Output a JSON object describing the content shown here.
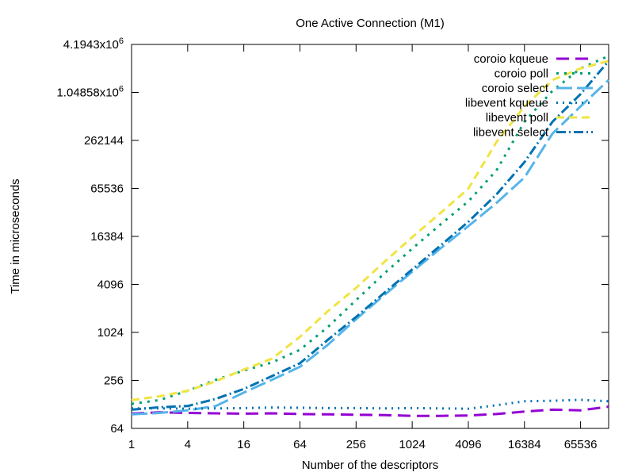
{
  "chart_data": {
    "type": "line",
    "title": "One Active Connection (M1)",
    "xlabel": "Number of the descriptors",
    "ylabel": "Time in microseconds",
    "x_scale": "log2",
    "y_scale": "log2",
    "xlim": [
      1,
      131072
    ],
    "ylim": [
      64,
      4194304
    ],
    "grid": false,
    "legend_position": "top-right",
    "x_ticks": [
      "1",
      "4",
      "16",
      "64",
      "256",
      "1024",
      "4096",
      "16384",
      "65536"
    ],
    "y_ticks": [
      "64",
      "256",
      "1024",
      "4096",
      "16384",
      "65536",
      "262144",
      "1.04858x10^6",
      "4.1943x10^6"
    ],
    "x_tick_values": [
      1,
      4,
      16,
      64,
      256,
      1024,
      4096,
      16384,
      65536
    ],
    "y_tick_values": [
      64,
      256,
      1024,
      4096,
      16384,
      65536,
      262144,
      1048576,
      4194304
    ],
    "x": [
      1,
      2,
      4,
      8,
      16,
      32,
      64,
      128,
      256,
      512,
      1024,
      2048,
      4096,
      8192,
      16384,
      32768,
      65536,
      131072
    ],
    "series": [
      {
        "name": "coroio kqueue",
        "color": "#9400d3",
        "dash": "16,8",
        "values": [
          98,
          102,
          100,
          99,
          98,
          99,
          97,
          96,
          95,
          94,
          92,
          92,
          93,
          97,
          104,
          110,
          108,
          120
        ]
      },
      {
        "name": "coroio poll",
        "color": "#009e73",
        "dash": "3,7",
        "values": [
          130,
          145,
          190,
          260,
          340,
          430,
          620,
          1200,
          2600,
          5600,
          11500,
          23000,
          45000,
          110000,
          450000,
          1100000,
          2100000,
          3000000
        ]
      },
      {
        "name": "coroio select",
        "color": "#56b4e9",
        "dash": "20,6",
        "values": [
          96,
          100,
          108,
          122,
          180,
          260,
          380,
          720,
          1500,
          3000,
          5900,
          11500,
          22000,
          43000,
          90000,
          320000,
          700000,
          1500000
        ]
      },
      {
        "name": "libevent kqueue",
        "color": "#0072b2",
        "dash": "2,6",
        "values": [
          114,
          114,
          113,
          114,
          115,
          117,
          116,
          115,
          115,
          114,
          115,
          114,
          113,
          125,
          140,
          142,
          146,
          140
        ]
      },
      {
        "name": "libevent poll",
        "color": "#f0e442",
        "dash": "10,6",
        "values": [
          145,
          162,
          190,
          250,
          350,
          480,
          900,
          1900,
          3700,
          7800,
          16000,
          32000,
          65000,
          250000,
          700000,
          1500000,
          2100000,
          2600000
        ]
      },
      {
        "name": "libevent select",
        "color": "#0072b2",
        "dash": "12,4,2,4",
        "values": [
          110,
          118,
          122,
          150,
          200,
          290,
          420,
          830,
          1600,
          3200,
          6300,
          12500,
          25000,
          55000,
          140000,
          450000,
          1000000,
          2600000
        ]
      }
    ]
  }
}
